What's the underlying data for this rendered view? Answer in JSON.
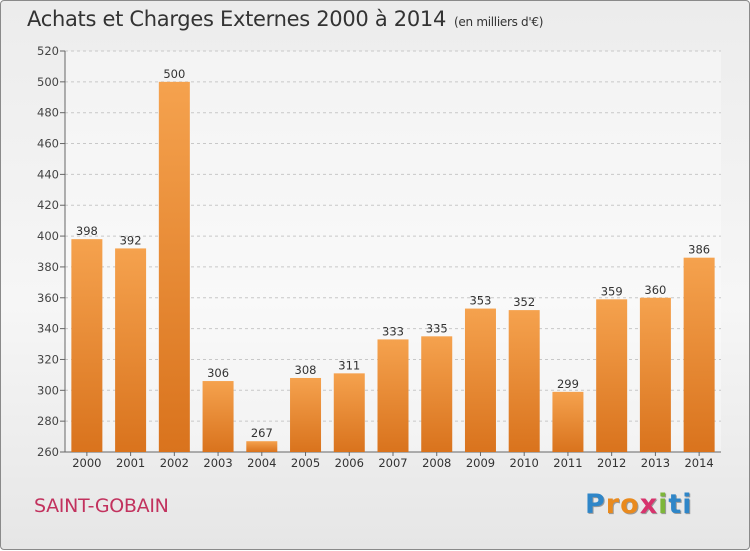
{
  "title": "Achats et Charges Externes 2000 à 2014",
  "subtitle": "(en milliers d'€)",
  "town": "SAINT-GOBAIN",
  "logo": {
    "text": "Proxiti",
    "letter_colors": [
      "#2f86c8",
      "#e98a1e",
      "#e98a1e",
      "#d7336d",
      "#7db63a",
      "#2f86c8",
      "#2f86c8"
    ]
  },
  "colors": {
    "bar_top": "#f5a24e",
    "bar_bottom": "#d9731d",
    "town": "#c2325e"
  },
  "chart_data": {
    "type": "bar",
    "title": "Achats et Charges Externes 2000 à 2014",
    "subtitle": "(en milliers d'€)",
    "categories": [
      "2000",
      "2001",
      "2002",
      "2003",
      "2004",
      "2005",
      "2006",
      "2007",
      "2008",
      "2009",
      "2010",
      "2011",
      "2012",
      "2013",
      "2014"
    ],
    "values": [
      398,
      392,
      500,
      306,
      267,
      308,
      311,
      333,
      335,
      353,
      352,
      299,
      359,
      360,
      386
    ],
    "ylim": [
      260,
      520
    ],
    "yticks": [
      260,
      280,
      300,
      320,
      340,
      360,
      380,
      400,
      420,
      440,
      460,
      480,
      500,
      520
    ],
    "grid": true,
    "data_labels": true
  }
}
